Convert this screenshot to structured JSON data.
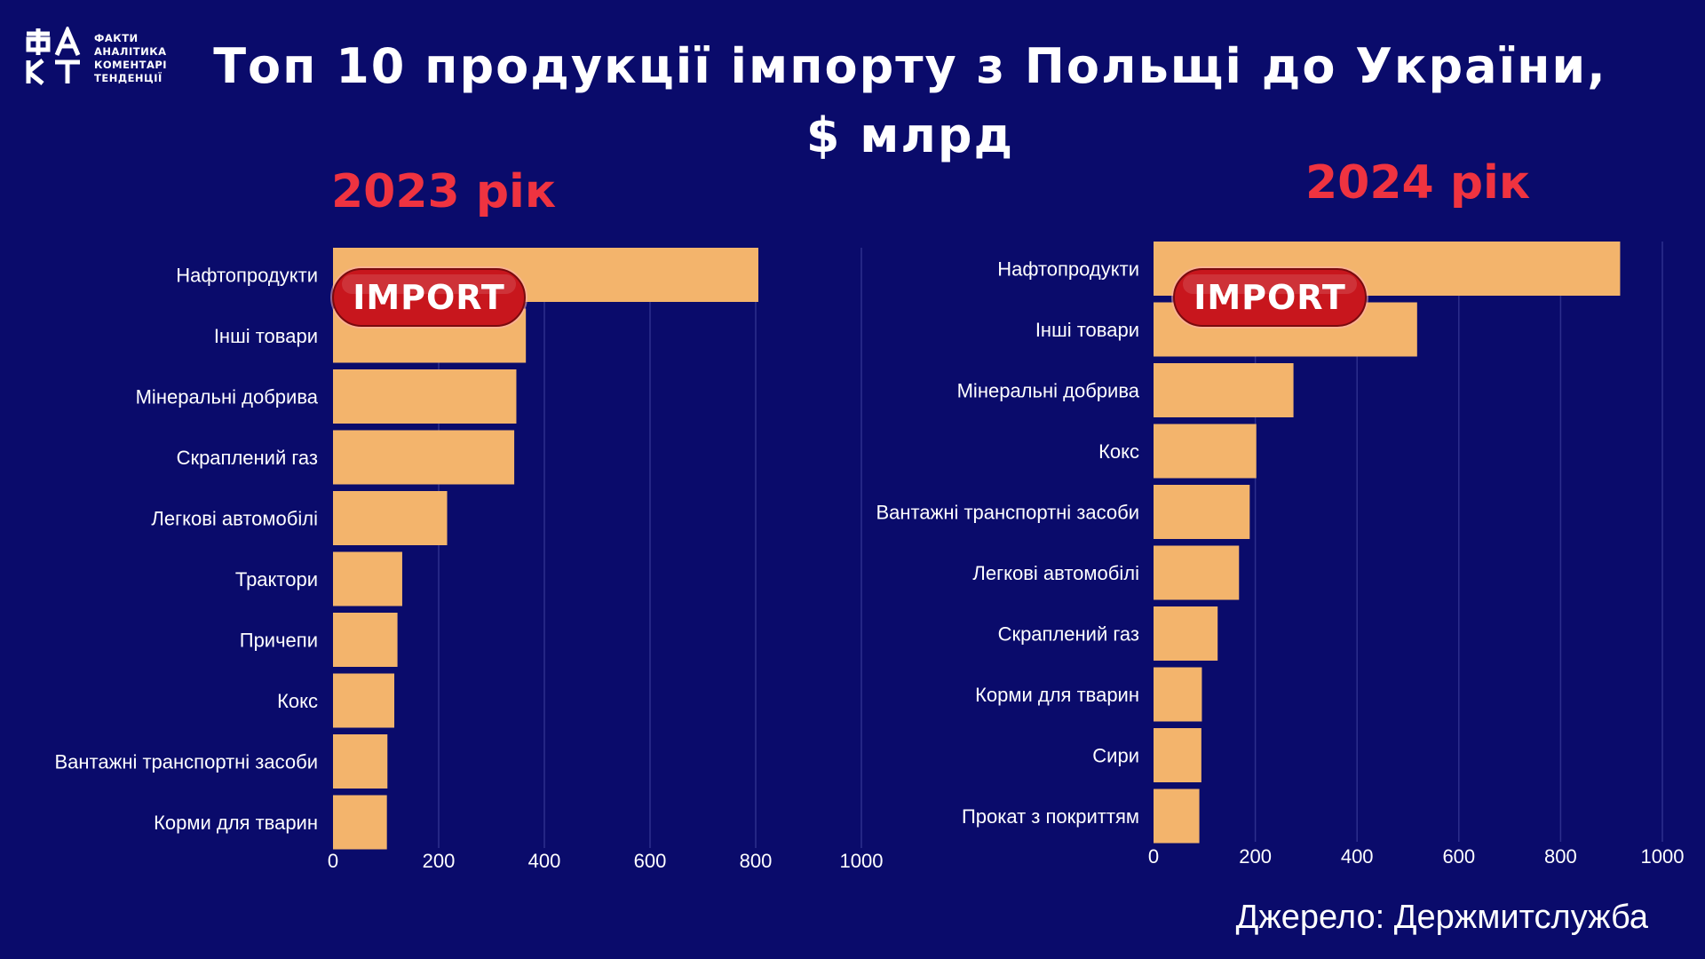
{
  "logo": {
    "mark": "ФАКТ",
    "lines": [
      "ФАКТИ",
      "АНАЛІТИКА",
      "КОМЕНТАРІ",
      "ТЕНДЕНЦІЇ"
    ]
  },
  "title_line1": "Топ 10 продукції імпорту з Польщі до України,",
  "title_line2": "$ млрд",
  "badge_label": "IMPORT",
  "source": "Джерело: Держмитслужба",
  "colors": {
    "background": "#0a0b6b",
    "bar": "#f3b46c",
    "year": "#ef3340",
    "badge": "#c8161d"
  },
  "chart_data": [
    {
      "type": "bar",
      "orientation": "horizontal",
      "title": "2023 рік",
      "categories": [
        "Нафтопродукти",
        "Інші товари",
        "Мінеральні добрива",
        "Скраплений газ",
        "Легкові автомобілі",
        "Трактори",
        "Причепи",
        "Кокс",
        "Вантажні транспортні засоби",
        "Корми для тварин"
      ],
      "values": [
        805,
        365,
        347,
        343,
        216,
        131,
        122,
        116,
        103,
        102
      ],
      "xlim": [
        0,
        1000
      ],
      "xticks": [
        0,
        200,
        400,
        600,
        800,
        1000
      ],
      "grid": true
    },
    {
      "type": "bar",
      "orientation": "horizontal",
      "title": "2024 рік",
      "categories": [
        "Нафтопродукти",
        "Інші товари",
        "Мінеральні добрива",
        "Кокс",
        "Вантажні транспортні засоби",
        "Легкові автомобілі",
        "Скраплений газ",
        "Корми для тварин",
        "Сири",
        "Прокат з покриттям"
      ],
      "values": [
        917,
        518,
        275,
        202,
        189,
        168,
        126,
        95,
        94,
        90
      ],
      "xlim": [
        0,
        1000
      ],
      "xticks": [
        0,
        200,
        400,
        600,
        800,
        1000
      ],
      "grid": true
    }
  ]
}
